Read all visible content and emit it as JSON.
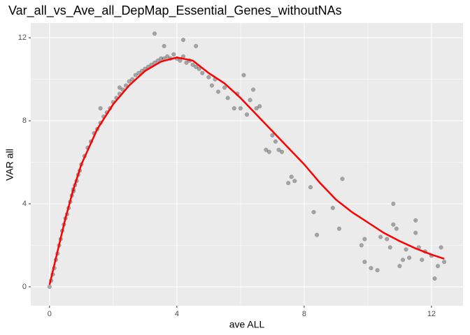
{
  "chart_data": {
    "type": "scatter",
    "title": "Var_all_vs_Ave_all_DepMap_Essential_Genes_withoutNAs",
    "x_label": "ave ALL",
    "y_label": "VAR all",
    "xlim": [
      -0.59,
      12.99
    ],
    "ylim": [
      -0.91,
      12.71
    ],
    "xticks": [
      0,
      4,
      8,
      12
    ],
    "yticks": [
      0,
      4,
      8,
      12
    ],
    "x_minor_grid": [
      2,
      6,
      10
    ],
    "y_minor_grid": [
      2,
      6,
      10
    ],
    "grid": true,
    "series": [
      {
        "type": "scatter",
        "color": "#000000",
        "x": [
          0,
          0.05,
          0.1,
          0.15,
          0.2,
          0.25,
          0.3,
          0.35,
          0.4,
          0.45,
          0.5,
          0.55,
          0.6,
          0.65,
          0.7,
          0.75,
          0.8,
          0.85,
          0.9,
          0.95,
          1.0,
          1.1,
          1.2,
          1.3,
          1.4,
          1.5,
          1.6,
          1.7,
          1.8,
          1.9,
          2.0,
          2.1,
          2.2,
          2.3,
          2.4,
          2.5,
          2.6,
          2.7,
          2.8,
          2.9,
          3.0,
          3.1,
          3.2,
          3.3,
          3.4,
          3.5,
          3.6,
          3.7,
          3.8,
          3.9,
          4.0,
          4.1,
          4.2,
          4.3,
          4.4,
          4.5,
          4.6,
          4.7,
          3.3,
          3.6,
          4.2,
          4.6,
          0.75,
          1.6,
          2.2,
          4.8,
          5.0,
          5.1,
          5.2,
          5.3,
          5.5,
          5.6,
          5.8,
          5.9,
          6.0,
          6.1,
          6.2,
          6.3,
          6.4,
          6.5,
          6.6,
          6.8,
          6.9,
          7.0,
          7.1,
          7.2,
          7.3,
          7.5,
          7.6,
          7.7,
          8.2,
          8.3,
          8.4,
          8.9,
          9.1,
          9.2,
          9.8,
          9.9,
          9.9,
          10.1,
          10.3,
          10.6,
          10.7,
          10.8,
          10.8,
          10.9,
          11.0,
          11.1,
          11.2,
          11.3,
          11.5,
          11.5,
          11.6,
          11.8,
          12.0,
          12.1,
          12.2,
          12.3,
          12.4,
          11.7,
          10.4
        ],
        "values": [
          0,
          0.3,
          0.6,
          0.9,
          1.3,
          1.6,
          2.0,
          2.3,
          2.7,
          3.0,
          3.3,
          3.5,
          3.8,
          4.1,
          4.4,
          4.6,
          4.9,
          5.1,
          5.4,
          5.6,
          5.9,
          6.3,
          6.7,
          7.0,
          7.4,
          7.6,
          7.9,
          8.2,
          8.4,
          8.6,
          8.9,
          9.1,
          9.3,
          9.5,
          9.7,
          9.9,
          10.0,
          10.2,
          10.3,
          10.4,
          10.5,
          10.6,
          10.7,
          10.8,
          10.9,
          11.0,
          11.0,
          11.1,
          11.0,
          11.2,
          11.0,
          10.9,
          11.1,
          10.8,
          10.9,
          10.7,
          10.6,
          10.5,
          12.2,
          11.6,
          11.9,
          11.6,
          4.7,
          8.6,
          9.6,
          10.3,
          10.1,
          9.7,
          10.0,
          9.4,
          9.6,
          9.1,
          8.6,
          9.3,
          8.6,
          10.2,
          8.3,
          9.0,
          9.5,
          8.6,
          8.7,
          6.6,
          6.5,
          7.3,
          7.0,
          6.6,
          6.5,
          5.0,
          5.3,
          5.1,
          4.8,
          3.6,
          2.5,
          3.8,
          2.8,
          5.2,
          2.0,
          2.3,
          1.2,
          0.9,
          0.8,
          2.3,
          1.9,
          3.0,
          4.0,
          2.8,
          1.0,
          1.3,
          1.8,
          1.4,
          2.6,
          3.2,
          1.9,
          1.7,
          1.5,
          0.4,
          1.0,
          1.9,
          1.2,
          1.3,
          2.4
        ]
      },
      {
        "type": "line",
        "color": "#ff0000",
        "x": [
          0,
          0.25,
          0.5,
          0.75,
          1,
          1.5,
          2,
          2.5,
          3,
          3.5,
          4,
          4.5,
          5,
          5.5,
          6,
          6.5,
          7,
          7.5,
          8,
          8.5,
          9,
          9.5,
          10,
          10.5,
          11,
          11.5,
          12,
          12.4
        ],
        "values": [
          0.1,
          1.7,
          3.3,
          4.7,
          5.9,
          7.6,
          8.8,
          9.7,
          10.4,
          10.85,
          11.05,
          10.9,
          10.3,
          9.8,
          9.1,
          8.3,
          7.5,
          6.7,
          5.9,
          5.0,
          4.2,
          3.6,
          3.1,
          2.6,
          2.2,
          1.85,
          1.55,
          1.35
        ]
      }
    ]
  }
}
